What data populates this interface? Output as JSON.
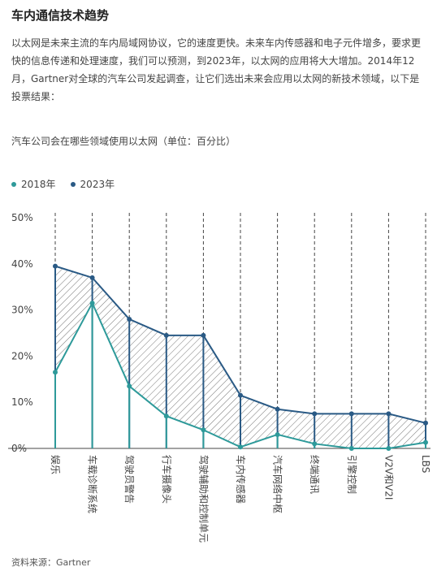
{
  "page": {
    "title": "车内通信技术趋势",
    "intro": "以太网是未来主流的车内局域网协议，它的速度更快。未来车内传感器和电子元件增多，要求更快的信息传递和处理速度，我们可以预测，到2023年，以太网的应用将大大增加。2014年12月，Gartner对全球的汽车公司发起调查，让它们选出未来会应用以太网的新技术领域，以下是投票结果：",
    "source": "资料来源：Gartner"
  },
  "chart_data": {
    "type": "line",
    "title": "汽车公司会在哪些领域使用以太网（单位：百分比）",
    "categories": [
      "娱乐",
      "车载诊断系统",
      "驾驶员警告",
      "行车摄像头",
      "驾驶辅助和控制单元",
      "车内传感器",
      "汽车网络中枢",
      "终端通讯",
      "引擎控制",
      "V2V和V2I",
      "LBS"
    ],
    "series": [
      {
        "name": "2018年",
        "color": "#2e9a9a",
        "values": [
          16.5,
          31.5,
          13.5,
          7,
          4,
          0.3,
          3,
          1,
          0,
          0,
          1.3
        ]
      },
      {
        "name": "2023年",
        "color": "#2a5a85",
        "values": [
          39.5,
          37,
          28,
          24.5,
          24.5,
          11.5,
          8.5,
          7.5,
          7.5,
          7.5,
          5.5
        ]
      }
    ],
    "yticks": [
      "0%",
      "10%",
      "20%",
      "30%",
      "40%",
      "50%"
    ],
    "ylim": [
      0,
      50
    ],
    "legend_position": "top-left",
    "grid": "vertical dashed"
  }
}
